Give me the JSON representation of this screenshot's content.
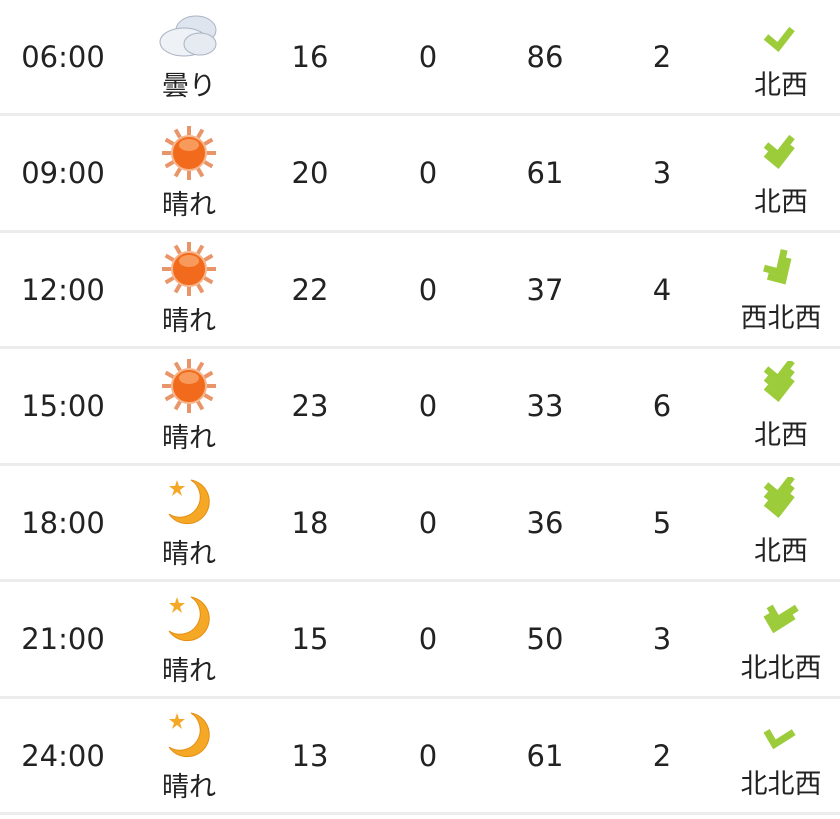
{
  "colors": {
    "sun": "#f26a1b",
    "moon": "#f4a825",
    "cloud": "#cfd8e6",
    "arrow": "#9ccc3a",
    "divider": "#ececec"
  },
  "rows": [
    {
      "time": "06:00",
      "icon": "cloud-icon",
      "weather": "曇り",
      "temp": "16",
      "precip": "0",
      "humidity": "86",
      "wind": "2",
      "direction": "北西",
      "chevrons": 1,
      "angle": 0
    },
    {
      "time": "09:00",
      "icon": "sun-icon",
      "weather": "晴れ",
      "temp": "20",
      "precip": "0",
      "humidity": "61",
      "wind": "3",
      "direction": "北西",
      "chevrons": 2,
      "angle": 0
    },
    {
      "time": "12:00",
      "icon": "sun-icon",
      "weather": "晴れ",
      "temp": "22",
      "precip": "0",
      "humidity": "37",
      "wind": "4",
      "direction": "西北西",
      "chevrons": 2,
      "angle": -25
    },
    {
      "time": "15:00",
      "icon": "sun-icon",
      "weather": "晴れ",
      "temp": "23",
      "precip": "0",
      "humidity": "33",
      "wind": "6",
      "direction": "北西",
      "chevrons": 3,
      "angle": 0
    },
    {
      "time": "18:00",
      "icon": "moon-icon",
      "weather": "晴れ",
      "temp": "18",
      "precip": "0",
      "humidity": "36",
      "wind": "5",
      "direction": "北西",
      "chevrons": 3,
      "angle": 0
    },
    {
      "time": "21:00",
      "icon": "moon-icon",
      "weather": "晴れ",
      "temp": "15",
      "precip": "0",
      "humidity": "50",
      "wind": "3",
      "direction": "北北西",
      "chevrons": 2,
      "angle": 20
    },
    {
      "time": "24:00",
      "icon": "moon-icon",
      "weather": "晴れ",
      "temp": "13",
      "precip": "0",
      "humidity": "61",
      "wind": "2",
      "direction": "北北西",
      "chevrons": 1,
      "angle": 20
    }
  ]
}
